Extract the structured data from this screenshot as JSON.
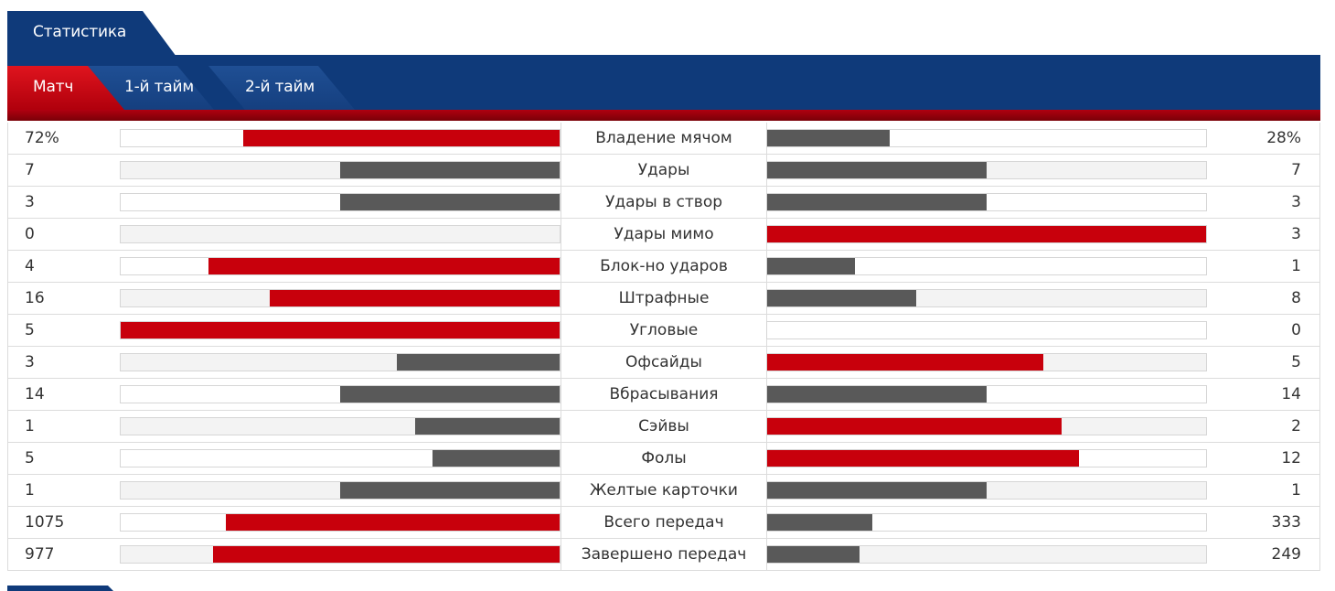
{
  "section_tab": "Статистика",
  "period_tabs": [
    "Матч",
    "1-й тайм",
    "2-й тайм"
  ],
  "colors": {
    "header_blue": "#0f3a7a",
    "accent_red": "#c8000c",
    "neutral_gray": "#595959"
  },
  "stats": [
    {
      "label": "Владение мячом",
      "home": "72%",
      "away": "28%",
      "home_frac": 0.72,
      "away_frac": 0.28,
      "home_color": "red",
      "away_color": "gray"
    },
    {
      "label": "Удары",
      "home": "7",
      "away": "7",
      "home_frac": 0.5,
      "away_frac": 0.5,
      "home_color": "gray",
      "away_color": "gray"
    },
    {
      "label": "Удары в створ",
      "home": "3",
      "away": "3",
      "home_frac": 0.5,
      "away_frac": 0.5,
      "home_color": "gray",
      "away_color": "gray"
    },
    {
      "label": "Удары мимо",
      "home": "0",
      "away": "3",
      "home_frac": 0.0,
      "away_frac": 1.0,
      "home_color": "gray",
      "away_color": "red"
    },
    {
      "label": "Блок-но ударов",
      "home": "4",
      "away": "1",
      "home_frac": 0.8,
      "away_frac": 0.2,
      "home_color": "red",
      "away_color": "gray"
    },
    {
      "label": "Штрафные",
      "home": "16",
      "away": "8",
      "home_frac": 0.66,
      "away_frac": 0.34,
      "home_color": "red",
      "away_color": "gray"
    },
    {
      "label": "Угловые",
      "home": "5",
      "away": "0",
      "home_frac": 1.0,
      "away_frac": 0.0,
      "home_color": "red",
      "away_color": "gray"
    },
    {
      "label": "Офсайды",
      "home": "3",
      "away": "5",
      "home_frac": 0.37,
      "away_frac": 0.63,
      "home_color": "gray",
      "away_color": "red"
    },
    {
      "label": "Вбрасывания",
      "home": "14",
      "away": "14",
      "home_frac": 0.5,
      "away_frac": 0.5,
      "home_color": "gray",
      "away_color": "gray"
    },
    {
      "label": "Сэйвы",
      "home": "1",
      "away": "2",
      "home_frac": 0.33,
      "away_frac": 0.67,
      "home_color": "gray",
      "away_color": "red"
    },
    {
      "label": "Фолы",
      "home": "5",
      "away": "12",
      "home_frac": 0.29,
      "away_frac": 0.71,
      "home_color": "gray",
      "away_color": "red"
    },
    {
      "label": "Желтые карточки",
      "home": "1",
      "away": "1",
      "home_frac": 0.5,
      "away_frac": 0.5,
      "home_color": "gray",
      "away_color": "gray"
    },
    {
      "label": "Всего передач",
      "home": "1075",
      "away": "333",
      "home_frac": 0.76,
      "away_frac": 0.24,
      "home_color": "red",
      "away_color": "gray"
    },
    {
      "label": "Завершено передач",
      "home": "977",
      "away": "249",
      "home_frac": 0.79,
      "away_frac": 0.21,
      "home_color": "red",
      "away_color": "gray"
    }
  ]
}
